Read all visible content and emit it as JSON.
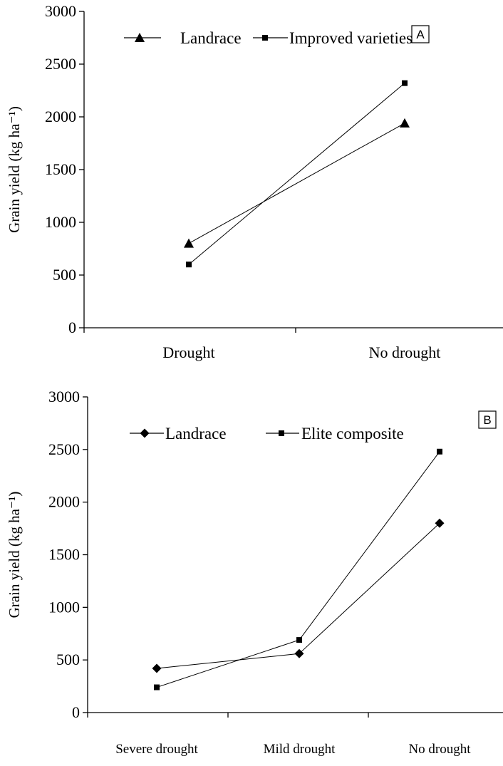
{
  "chart_data": [
    {
      "type": "line",
      "panel_label": "A",
      "ylabel": "Grain yield (kg ha⁻¹)",
      "xlabel": "",
      "ylim": [
        0,
        3000
      ],
      "yticks": [
        "0",
        "500",
        "1000",
        "1500",
        "2000",
        "2500",
        "3000"
      ],
      "categories": [
        "Drought",
        "No drought"
      ],
      "legend_position": "top",
      "series": [
        {
          "name": "Landrace",
          "marker": "triangle",
          "values": [
            800,
            1940
          ]
        },
        {
          "name": "Improved varieties",
          "marker": "square",
          "values": [
            600,
            2320
          ]
        }
      ]
    },
    {
      "type": "line",
      "panel_label": "B",
      "ylabel": "Grain yield (kg ha⁻¹)",
      "xlabel": "",
      "ylim": [
        0,
        3000
      ],
      "yticks": [
        "0",
        "500",
        "1000",
        "1500",
        "2000",
        "2500",
        "3000"
      ],
      "categories": [
        "Severe drought",
        "Mild drought",
        "No drought"
      ],
      "legend_position": "top",
      "series": [
        {
          "name": "Landrace",
          "marker": "diamond",
          "values": [
            420,
            560,
            1800
          ]
        },
        {
          "name": "Elite composite",
          "marker": "square",
          "values": [
            240,
            690,
            2480
          ]
        }
      ]
    }
  ]
}
